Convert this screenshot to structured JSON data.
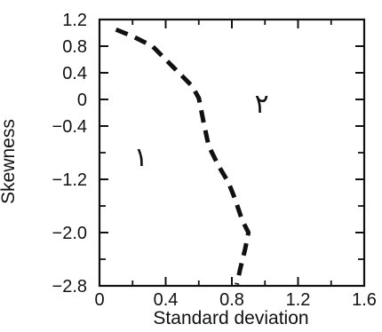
{
  "chart_data": {
    "type": "line",
    "xlabel": "Standard deviation",
    "ylabel": "Skewness",
    "xlim": [
      0,
      1.6
    ],
    "ylim": [
      -2.8,
      1.2
    ],
    "x_ticks": [
      "0",
      "0.4",
      "0.8",
      "1.2",
      "1.6"
    ],
    "y_ticks": [
      "1.2",
      "0.8",
      "0.4",
      "0",
      "−0.4",
      "−1.2",
      "−2.0",
      "−2.8"
    ],
    "y_tick_values": [
      1.2,
      0.8,
      0.4,
      0,
      -0.4,
      -1.2,
      -2.0,
      -2.8
    ],
    "y_minor_tick_values": [
      -0.8,
      -1.6,
      -2.4
    ],
    "x_minor_tick_values": [
      0.2,
      0.6,
      1.0,
      1.4
    ],
    "grid": false,
    "series": [
      {
        "line_style": "dashed",
        "color": "#111111",
        "x": [
          0.1,
          0.2,
          0.32,
          0.44,
          0.56,
          0.6,
          0.63,
          0.66,
          0.72,
          0.78,
          0.82,
          0.86,
          0.9,
          0.88,
          0.85,
          0.83
        ],
        "y": [
          1.05,
          0.95,
          0.8,
          0.5,
          0.2,
          0.02,
          -0.35,
          -0.7,
          -1.0,
          -1.25,
          -1.5,
          -1.8,
          -2.0,
          -2.25,
          -2.55,
          -2.78
        ]
      }
    ],
    "annotations": [
      {
        "text": "١",
        "x": 0.25,
        "y": -1.0
      },
      {
        "text": "٢",
        "x": 0.98,
        "y": -0.2
      }
    ]
  }
}
